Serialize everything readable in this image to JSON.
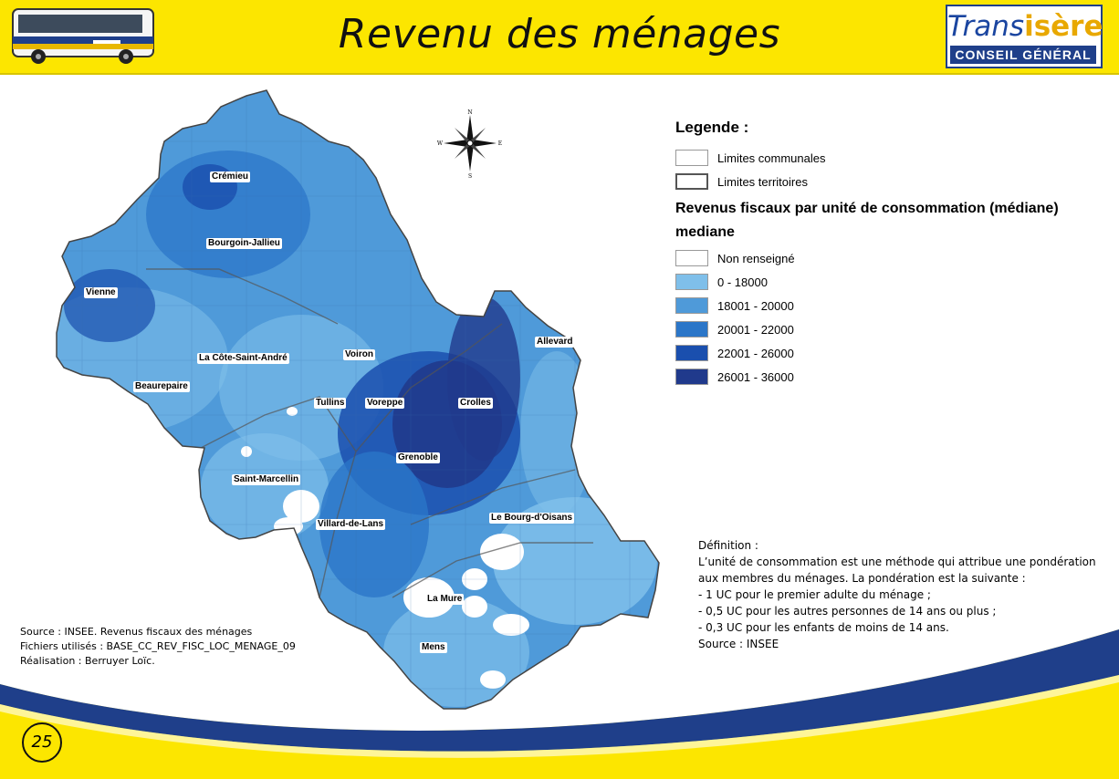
{
  "header": {
    "title": "Revenu des ménages",
    "logo_trans": "Trans",
    "logo_isere": "isère",
    "logo_subtitle": "CONSEIL GÉNÉRAL",
    "colors": {
      "header_bg": "#fce600",
      "logo_blue": "#1f3f8a"
    }
  },
  "map": {
    "compass": {
      "n": "N",
      "s": "S",
      "e": "E",
      "w": "W"
    },
    "places": [
      "Crémieu",
      "Bourgoin-Jallieu",
      "Vienne",
      "La Côte-Saint-André",
      "Beaurepaire",
      "Voiron",
      "Tullins",
      "Voreppe",
      "Crolles",
      "Allevard",
      "Grenoble",
      "Saint-Marcellin",
      "Villard-de-Lans",
      "Le Bourg-d'Oisans",
      "La Mure",
      "Mens"
    ]
  },
  "legend": {
    "title": "Legende :",
    "limits": [
      "Limites communales",
      "Limites territoires"
    ],
    "section_title": "Revenus fiscaux par unité de consommation (médiane)",
    "section_subtitle": "mediane",
    "classes": [
      {
        "label": "Non renseigné",
        "color": "#ffffff"
      },
      {
        "label": "0 - 18000",
        "color": "#7fbfea"
      },
      {
        "label": "18001 - 20000",
        "color": "#4f9ad9"
      },
      {
        "label": "20001 - 22000",
        "color": "#2b76c8"
      },
      {
        "label": "22001 - 26000",
        "color": "#1a4fae"
      },
      {
        "label": "26001 - 36000",
        "color": "#203a8c"
      }
    ]
  },
  "definition": {
    "heading": "Définition :",
    "lines": [
      "L’unité de consommation est une méthode qui attribue une pondération",
      "aux membres du ménages. La pondération est la suivante :",
      "- 1 UC pour le premier adulte du ménage ;",
      "- 0,5 UC pour les autres personnes de 14 ans ou plus ;",
      "- 0,3 UC pour les enfants de moins de 14 ans.",
      "Source : INSEE"
    ]
  },
  "sources": {
    "lines": [
      "Source :  INSEE. Revenus fiscaux des ménages",
      "Fichiers utilisés : BASE_CC_REV_FISC_LOC_MENAGE_09",
      "Réalisation : Berruyer Loïc."
    ]
  },
  "page_number": "25"
}
